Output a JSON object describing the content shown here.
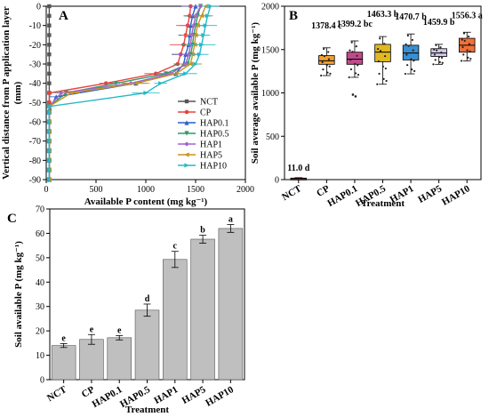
{
  "chart_data": [
    {
      "panel": "A",
      "type": "line",
      "xlabel": "Available P content (mg kg⁻¹)",
      "ylabel_line1": "Vertical distance from P application layer",
      "ylabel_line2": "(mm)",
      "xlim": [
        0,
        2000
      ],
      "ylim": [
        -90,
        0
      ],
      "x_ticks": [
        0,
        500,
        1000,
        1500,
        2000
      ],
      "y_ticks": [
        0,
        -10,
        -20,
        -30,
        -40,
        -50,
        -60,
        -70,
        -80,
        -90
      ],
      "legend_position": "bottom-right",
      "series": [
        {
          "name": "NCT",
          "color": "#555555",
          "marker": "square",
          "x": [
            30,
            30,
            30,
            30,
            30,
            30,
            30,
            30,
            30,
            30,
            30,
            30,
            30,
            30,
            30,
            30,
            30,
            30,
            30
          ],
          "y": [
            0,
            -5,
            -10,
            -15,
            -20,
            -25,
            -30,
            -35,
            -40,
            -45,
            -50,
            -55,
            -60,
            -65,
            -70,
            -75,
            -80,
            -85,
            -90
          ]
        },
        {
          "name": "CP",
          "color": "#e8423f",
          "marker": "circle",
          "x": [
            1450,
            1440,
            1420,
            1400,
            1380,
            1350,
            1320,
            1100,
            600,
            35,
            30,
            30,
            30,
            30,
            30,
            30,
            30,
            30,
            30
          ],
          "y": [
            0,
            -5,
            -10,
            -15,
            -20,
            -25,
            -30,
            -35,
            -40,
            -45,
            -50,
            -55,
            -60,
            -65,
            -70,
            -75,
            -80,
            -85,
            -90
          ]
        },
        {
          "name": "HAP0.1",
          "color": "#2a5fc7",
          "marker": "triangle",
          "x": [
            1500,
            1470,
            1450,
            1440,
            1430,
            1400,
            1380,
            1300,
            900,
            100,
            35,
            30,
            30,
            30,
            30,
            30,
            30,
            30,
            30
          ],
          "y": [
            0,
            -5,
            -10,
            -15,
            -20,
            -25,
            -30,
            -35,
            -40,
            -47,
            -53,
            -55,
            -60,
            -65,
            -70,
            -75,
            -80,
            -85,
            -90
          ]
        },
        {
          "name": "HAP0.5",
          "color": "#2e9a6a",
          "marker": "triangle-down",
          "x": [
            1550,
            1520,
            1500,
            1480,
            1470,
            1450,
            1420,
            1200,
            700,
            200,
            30,
            30,
            30,
            30,
            30,
            30,
            30,
            30,
            30
          ],
          "y": [
            0,
            -5,
            -10,
            -15,
            -20,
            -25,
            -30,
            -35,
            -40,
            -45,
            -52,
            -55,
            -60,
            -65,
            -70,
            -75,
            -80,
            -85,
            -90
          ]
        },
        {
          "name": "HAP1",
          "color": "#a060d0",
          "marker": "diamond",
          "x": [
            1550,
            1500,
            1480,
            1460,
            1450,
            1430,
            1400,
            1250,
            850,
            150,
            30,
            30,
            30,
            30,
            30,
            30,
            30,
            30,
            30
          ],
          "y": [
            0,
            -5,
            -10,
            -15,
            -20,
            -25,
            -30,
            -35,
            -40,
            -45,
            -52,
            -55,
            -60,
            -65,
            -70,
            -75,
            -80,
            -85,
            -90
          ]
        },
        {
          "name": "HAP5",
          "color": "#c8941f",
          "marker": "triangle-left",
          "x": [
            1600,
            1560,
            1520,
            1500,
            1490,
            1470,
            1450,
            1300,
            900,
            250,
            30,
            30,
            30,
            30,
            30,
            30,
            30,
            30,
            30
          ],
          "y": [
            0,
            -5,
            -10,
            -15,
            -20,
            -25,
            -30,
            -35,
            -40,
            -45,
            -52,
            -55,
            -60,
            -65,
            -70,
            -75,
            -80,
            -85,
            -90
          ]
        },
        {
          "name": "HAP10",
          "color": "#22b8c8",
          "marker": "triangle-right",
          "x": [
            1650,
            1620,
            1600,
            1580,
            1560,
            1540,
            1500,
            1400,
            1150,
            1000,
            30,
            30,
            30,
            30,
            30,
            30,
            30,
            30,
            30
          ],
          "y": [
            0,
            -5,
            -10,
            -15,
            -20,
            -25,
            -30,
            -35,
            -40,
            -45,
            -52,
            -55,
            -60,
            -65,
            -70,
            -75,
            -80,
            -85,
            -90
          ]
        }
      ]
    },
    {
      "panel": "B",
      "type": "box",
      "xlabel": "Treatment",
      "ylabel": "Soil average available P  (mg kg⁻¹)",
      "ylim": [
        0,
        2000
      ],
      "y_ticks": [
        0,
        500,
        1000,
        1500,
        2000
      ],
      "categories": [
        "NCT",
        "CP",
        "HAP0.1",
        "HAP0.5",
        "HAP1",
        "HAP5",
        "HAP10"
      ],
      "means": [
        11.0,
        1378.4,
        1399.2,
        1463.3,
        1470.7,
        1459.9,
        1556.3
      ],
      "labels": [
        "11.0 d",
        "1378.4 c",
        "1399.2 bc",
        "1463.3 b",
        "1470.7 b",
        "1459.9 b",
        "1556.3 a"
      ],
      "boxes": [
        {
          "q1": 5,
          "median": 11,
          "q3": 17,
          "whisker_low": 0,
          "whisker_high": 22
        },
        {
          "q1": 1330,
          "median": 1370,
          "q3": 1430,
          "whisker_low": 1200,
          "whisker_high": 1520
        },
        {
          "q1": 1330,
          "median": 1390,
          "q3": 1470,
          "whisker_low": 1180,
          "whisker_high": 1600
        },
        {
          "q1": 1360,
          "median": 1470,
          "q3": 1560,
          "whisker_low": 1100,
          "whisker_high": 1650
        },
        {
          "q1": 1380,
          "median": 1460,
          "q3": 1550,
          "whisker_low": 1220,
          "whisker_high": 1680
        },
        {
          "q1": 1420,
          "median": 1460,
          "q3": 1510,
          "whisker_low": 1330,
          "whisker_high": 1560
        },
        {
          "q1": 1470,
          "median": 1550,
          "q3": 1630,
          "whisker_low": 1370,
          "whisker_high": 1700
        }
      ],
      "box_colors": [
        "#cc2a2a",
        "#f0a030",
        "#c04a8a",
        "#e0b820",
        "#3a8fd0",
        "#d0c8e8",
        "#f0703a"
      ]
    },
    {
      "panel": "C",
      "type": "bar",
      "xlabel": "Treatment",
      "ylabel": "Soil  available P  (mg kg⁻¹)",
      "ylim": [
        0,
        70
      ],
      "y_ticks": [
        0,
        10,
        20,
        30,
        40,
        50,
        60,
        70
      ],
      "categories": [
        "NCT",
        "CP",
        "HAP0.1",
        "HAP0.5",
        "HAP1",
        "HAP5",
        "HAP10"
      ],
      "values": [
        14.0,
        16.5,
        17.2,
        28.5,
        49.3,
        57.6,
        62.0
      ],
      "errors": [
        0.8,
        2.0,
        0.9,
        2.5,
        3.3,
        1.6,
        1.6
      ],
      "letters": [
        "e",
        "e",
        "e",
        "d",
        "c",
        "b",
        "a"
      ],
      "bar_color": "#bfbfbf"
    }
  ]
}
